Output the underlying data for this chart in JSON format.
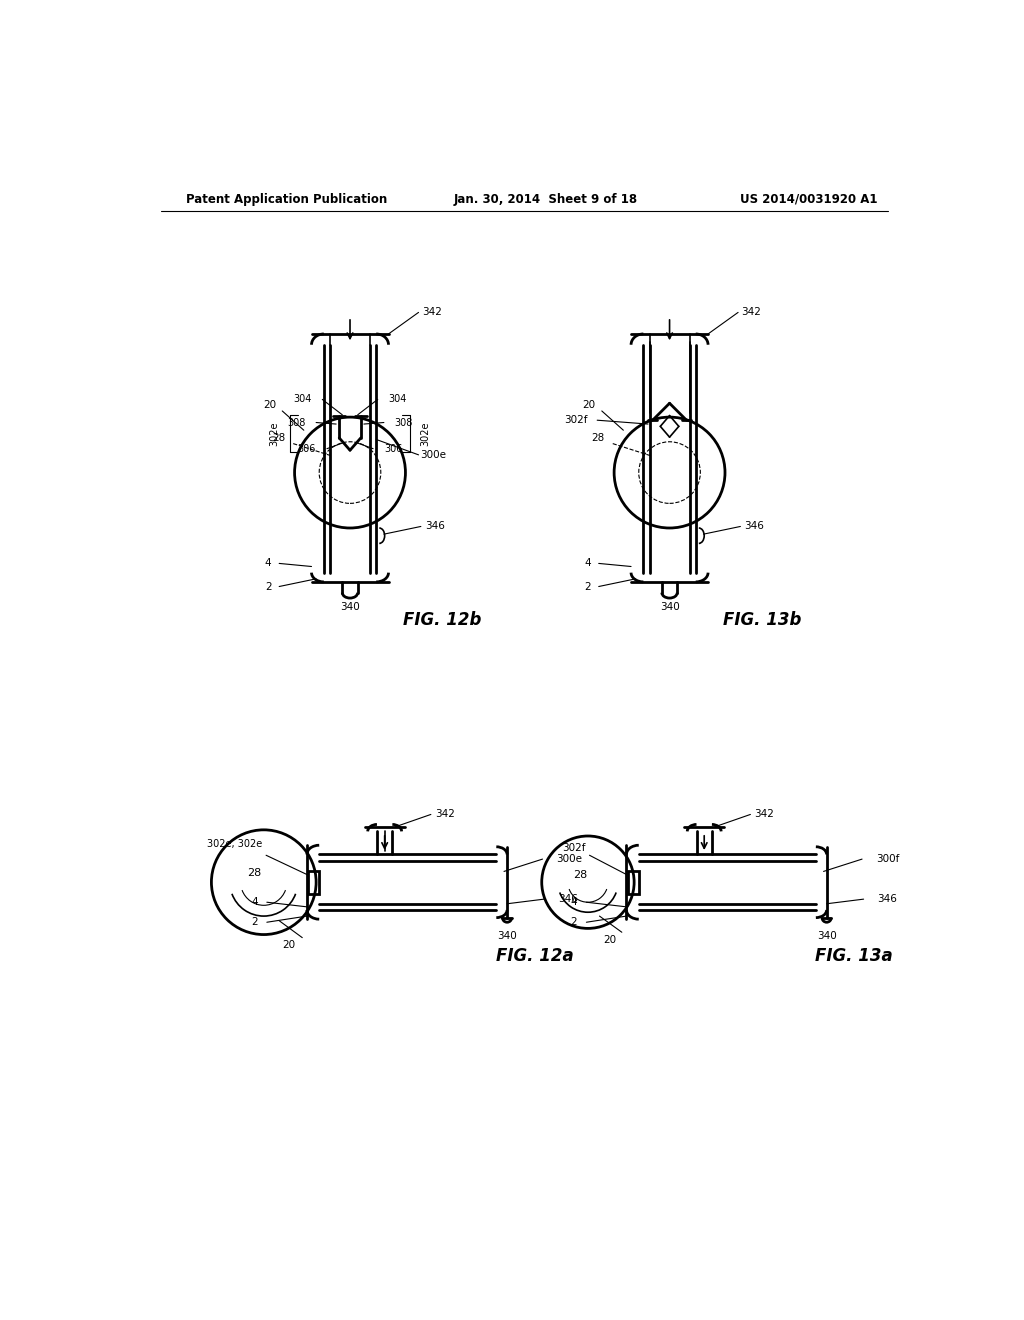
{
  "background_color": "#ffffff",
  "header_left": "Patent Application Publication",
  "header_mid": "Jan. 30, 2014  Sheet 9 of 18",
  "header_right": "US 2014/0031920 A1",
  "line_color": "#000000",
  "lw_thin": 0.8,
  "lw_medium": 1.2,
  "lw_thick": 2.0
}
